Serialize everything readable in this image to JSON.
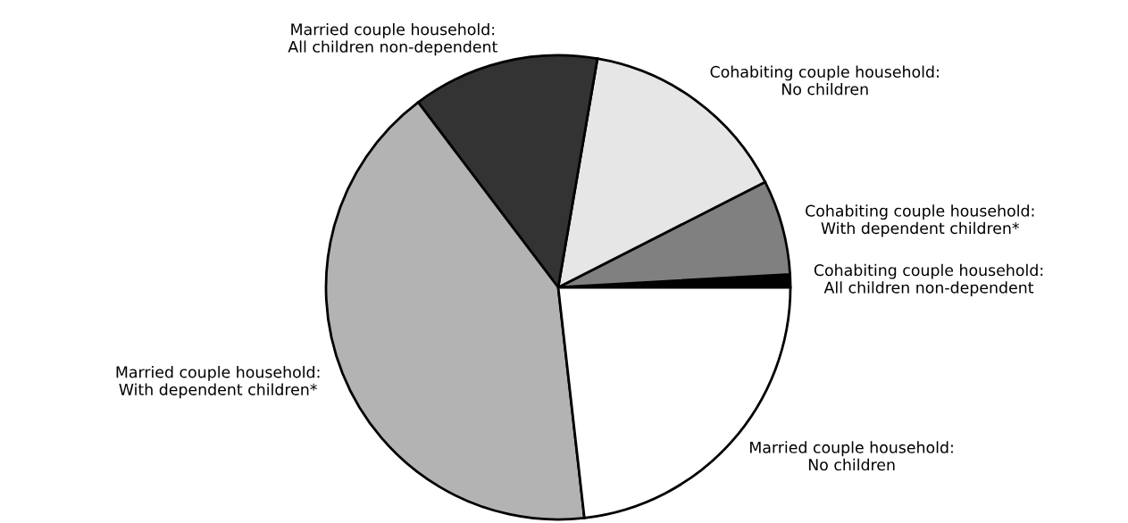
{
  "chart_data": {
    "type": "pie",
    "categories": [
      "Cohabiting couple household:\nAll children non-dependent",
      "Cohabiting couple household:\nWith dependent children*",
      "Cohabiting couple household:\nNo children",
      "Married couple household:\nAll children non-dependent",
      "Married couple household:\nWith dependent children*",
      "Married couple household:\nNo children"
    ],
    "values": [
      0.9,
      6.6,
      14.8,
      13.0,
      41.5,
      23.2
    ],
    "colors": [
      "#000000",
      "#808080",
      "#e6e6e6",
      "#333333",
      "#b3b3b3",
      "#ffffff"
    ]
  }
}
